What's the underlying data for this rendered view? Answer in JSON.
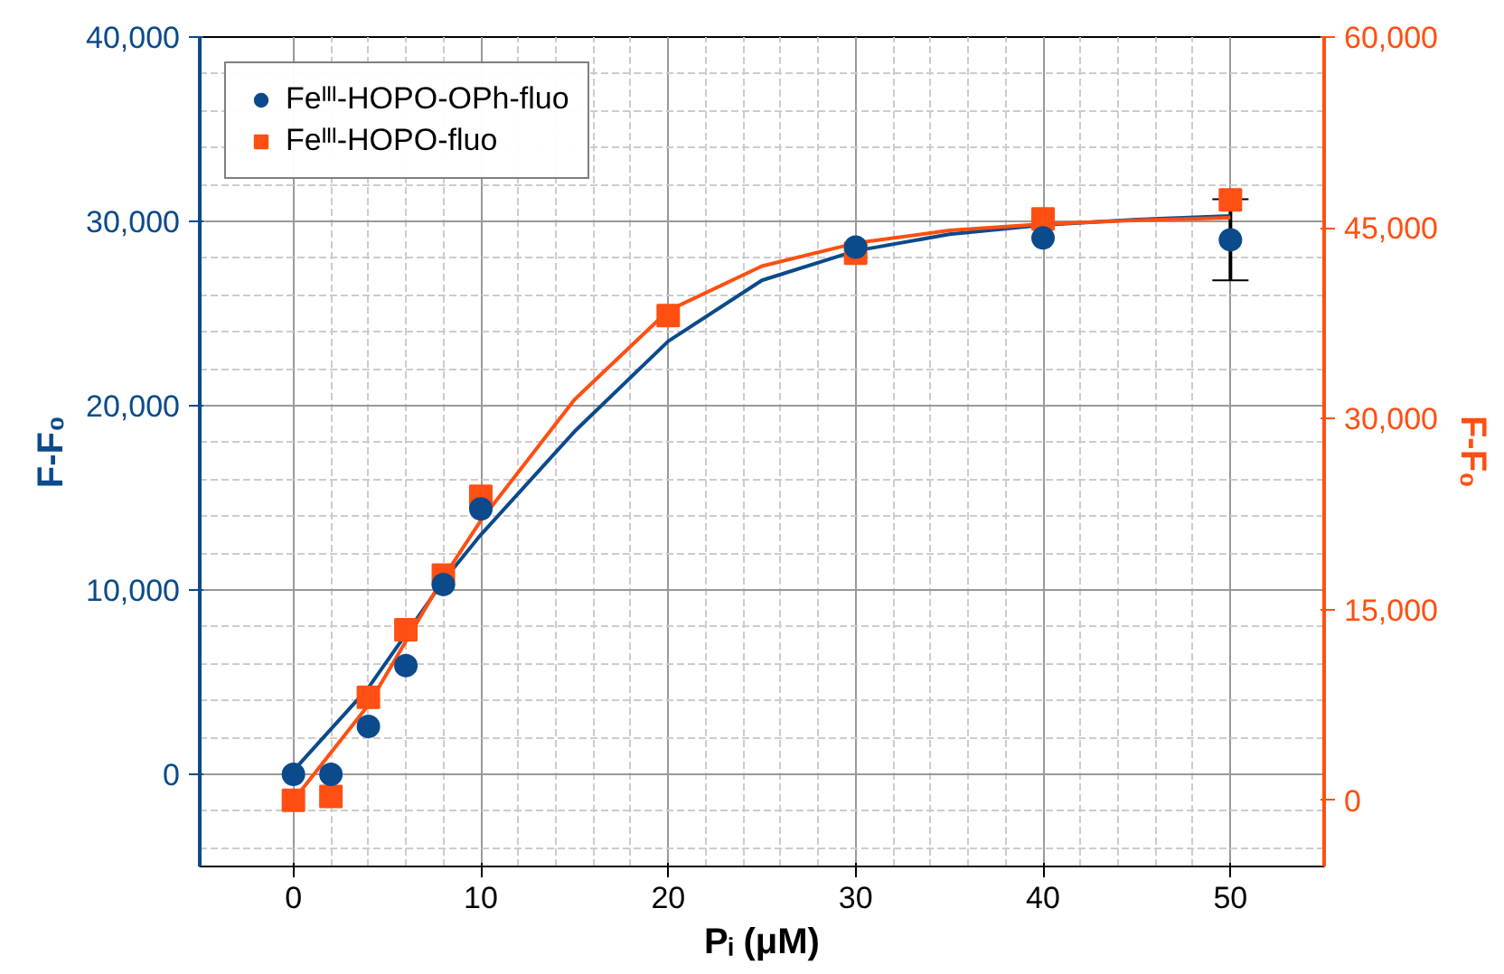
{
  "chart_data": {
    "type": "scatter",
    "xlabel": "Pᵢ (μM)",
    "ylabel": "F-F₀",
    "y2label": "F-F₀",
    "xlim": [
      -5,
      55
    ],
    "xticks": [
      0,
      10,
      20,
      30,
      40,
      50
    ],
    "ylim": [
      -5000,
      40000
    ],
    "yticks": [
      {
        "value": 0,
        "label": "0"
      },
      {
        "value": 10000,
        "label": "10,000"
      },
      {
        "value": 20000,
        "label": "20,000"
      },
      {
        "value": 30000,
        "label": "30,000"
      },
      {
        "value": 40000,
        "label": "40,000"
      }
    ],
    "y2lim": [
      -5200,
      60000
    ],
    "y2ticks": [
      {
        "value": 0,
        "label": "0"
      },
      {
        "value": 15000,
        "label": "15,000"
      },
      {
        "value": 30000,
        "label": "30,000"
      },
      {
        "value": 45000,
        "label": "45,000"
      },
      {
        "value": 60000,
        "label": "60,000"
      }
    ],
    "grid": true,
    "legend": "top left",
    "series": [
      {
        "name": "Feᴵᴵᴵ-HOPO-OPh-fluo",
        "marker": "circle",
        "color": "#0b4a8b",
        "x": [
          0,
          2,
          4,
          6,
          8,
          10,
          20,
          30,
          40,
          50
        ],
        "values": [
          0,
          0,
          2600,
          5900,
          10300,
          14400,
          null,
          28600,
          29100,
          29000
        ],
        "errors": [
          null,
          null,
          null,
          null,
          null,
          null,
          null,
          null,
          null,
          2200
        ]
      },
      {
        "name": "Feᴵᴵᴵ-HOPO-fluo",
        "marker": "square",
        "axis": "y2",
        "color": "#ff4f12",
        "x": [
          0,
          2,
          4,
          6,
          8,
          10,
          20,
          30,
          40,
          50
        ],
        "values": [
          0,
          300,
          8100,
          13400,
          17700,
          23900,
          38100,
          43000,
          45700,
          47200
        ]
      },
      {
        "type": "line",
        "color": "#0b4a8b",
        "x": [
          0,
          4,
          8,
          10,
          15,
          20,
          25,
          30,
          35,
          40,
          45,
          50
        ],
        "values": [
          200,
          4700,
          10500,
          13000,
          18600,
          23500,
          26800,
          28400,
          29300,
          29800,
          30100,
          30300
        ]
      },
      {
        "type": "line",
        "axis": "y2",
        "color": "#ff4f12",
        "x": [
          0,
          4,
          8,
          10,
          15,
          20,
          25,
          30,
          35,
          40,
          45,
          50
        ],
        "values": [
          0,
          7500,
          17500,
          22000,
          31500,
          38500,
          42000,
          43800,
          44800,
          45300,
          45600,
          45800
        ]
      }
    ]
  }
}
